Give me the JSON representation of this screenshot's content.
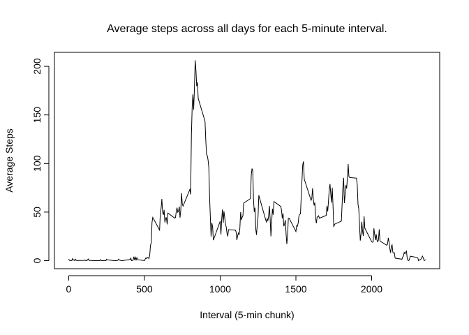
{
  "chart_data": {
    "type": "line",
    "title": "Average steps across all days for each 5-minute interval.",
    "x_label": "Interval (5-min chunk)",
    "y_label": "Average Steps",
    "color": "#000000",
    "xlim": [
      -94.2,
      2449.2
    ],
    "ylim": [
      -8.25,
      214.4
    ],
    "xticks": [
      0,
      500,
      1000,
      1500,
      2000
    ],
    "yticks": [
      0,
      50,
      100,
      150,
      200
    ],
    "x": [
      0,
      5,
      10,
      15,
      20,
      25,
      30,
      35,
      40,
      45,
      50,
      55,
      100,
      105,
      110,
      115,
      120,
      125,
      130,
      135,
      140,
      145,
      150,
      155,
      200,
      205,
      210,
      215,
      220,
      225,
      230,
      235,
      240,
      245,
      250,
      255,
      300,
      305,
      310,
      315,
      320,
      325,
      330,
      335,
      340,
      345,
      350,
      355,
      400,
      405,
      410,
      415,
      420,
      425,
      430,
      435,
      440,
      445,
      450,
      455,
      500,
      505,
      510,
      515,
      520,
      525,
      530,
      535,
      540,
      545,
      550,
      555,
      600,
      605,
      610,
      615,
      620,
      625,
      630,
      635,
      640,
      645,
      650,
      655,
      700,
      705,
      710,
      715,
      720,
      725,
      730,
      735,
      740,
      745,
      750,
      755,
      800,
      805,
      810,
      815,
      820,
      825,
      830,
      835,
      840,
      845,
      850,
      855,
      900,
      905,
      910,
      915,
      920,
      925,
      930,
      935,
      940,
      945,
      950,
      955,
      1000,
      1005,
      1010,
      1015,
      1020,
      1025,
      1030,
      1035,
      1040,
      1045,
      1050,
      1055,
      1100,
      1105,
      1110,
      1115,
      1120,
      1125,
      1130,
      1135,
      1140,
      1145,
      1150,
      1155,
      1200,
      1205,
      1210,
      1215,
      1220,
      1225,
      1230,
      1235,
      1240,
      1245,
      1250,
      1255,
      1300,
      1305,
      1310,
      1315,
      1320,
      1325,
      1330,
      1335,
      1340,
      1345,
      1350,
      1355,
      1400,
      1405,
      1410,
      1415,
      1420,
      1425,
      1430,
      1435,
      1440,
      1445,
      1450,
      1455,
      1500,
      1505,
      1510,
      1515,
      1520,
      1525,
      1530,
      1535,
      1540,
      1545,
      1550,
      1555,
      1600,
      1605,
      1610,
      1615,
      1620,
      1625,
      1630,
      1635,
      1640,
      1645,
      1650,
      1655,
      1700,
      1705,
      1710,
      1715,
      1720,
      1725,
      1730,
      1735,
      1740,
      1745,
      1750,
      1755,
      1800,
      1805,
      1810,
      1815,
      1820,
      1825,
      1830,
      1835,
      1840,
      1845,
      1850,
      1855,
      1900,
      1905,
      1910,
      1915,
      1920,
      1925,
      1930,
      1935,
      1940,
      1945,
      1950,
      1955,
      2000,
      2005,
      2010,
      2015,
      2020,
      2025,
      2030,
      2035,
      2040,
      2045,
      2050,
      2055,
      2100,
      2105,
      2110,
      2115,
      2120,
      2125,
      2130,
      2135,
      2140,
      2145,
      2150,
      2155,
      2200,
      2205,
      2210,
      2215,
      2220,
      2225,
      2230,
      2235,
      2240,
      2245,
      2250,
      2255,
      2300,
      2305,
      2310,
      2315,
      2320,
      2325,
      2330,
      2335,
      2340,
      2345,
      2350,
      2355
    ],
    "values": [
      1.7,
      0.3,
      0.1,
      0.2,
      0.1,
      2.1,
      0.5,
      0.9,
      0,
      1.5,
      0.3,
      0.1,
      0.3,
      0.7,
      0.2,
      0.3,
      0,
      1.1,
      1.8,
      0.2,
      0.2,
      0.4,
      0.3,
      0,
      0,
      0,
      1.1,
      0,
      0,
      0.1,
      0,
      0.2,
      0,
      0,
      1.5,
      0.9,
      0,
      0,
      0,
      0,
      0.2,
      0.6,
      1.6,
      0.6,
      0.5,
      0.1,
      0,
      0,
      1.2,
      0.9,
      2.6,
      0,
      0.3,
      0.4,
      4.1,
      0.7,
      3.5,
      0.8,
      3.1,
      1.1,
      0,
      1.6,
      3.0,
      2.2,
      3.3,
      3.0,
      2.1,
      6.1,
      16.0,
      18.3,
      39.5,
      44.5,
      31.5,
      49.3,
      53.8,
      63.5,
      50,
      47.1,
      52.2,
      39.3,
      44.0,
      44.2,
      37.4,
      49.0,
      43.8,
      44.4,
      50.5,
      54.5,
      49.9,
      51.0,
      55.7,
      44.3,
      52.3,
      69.5,
      57.8,
      56.2,
      73.4,
      68.2,
      129.4,
      157.5,
      171.2,
      155.4,
      177.3,
      206.2,
      195.9,
      179.6,
      183.4,
      167.0,
      143.5,
      124.0,
      109.1,
      108.1,
      103.7,
      96.0,
      66.2,
      45.2,
      24.8,
      38.8,
      35.0,
      21.1,
      40.6,
      27.0,
      42.4,
      52.7,
      38.9,
      50.8,
      44.3,
      37.4,
      34.7,
      28.3,
      25.1,
      31.9,
      31.4,
      29.7,
      21.3,
      25.5,
      28.4,
      26.5,
      33.4,
      50.0,
      42.0,
      44.6,
      46.0,
      59.2,
      63.9,
      87.7,
      94.8,
      92.8,
      63.4,
      50.2,
      54.5,
      32.4,
      26.5,
      37.7,
      45.1,
      67.3,
      42.3,
      39.9,
      43.3,
      41.0,
      46.2,
      56.4,
      42.8,
      25.1,
      40.0,
      53.5,
      47.3,
      60.8,
      55.8,
      52.0,
      43.6,
      48.7,
      35.5,
      37.5,
      41.8,
      27.5,
      17.1,
      26.1,
      43.6,
      43.8,
      30.0,
      36.1,
      35.5,
      38.8,
      46.0,
      47.8,
      48.1,
      65.3,
      82.9,
      98.7,
      102.1,
      84.0,
      62.1,
      64.1,
      74.5,
      63.2,
      56.9,
      59.8,
      43.9,
      38.6,
      44.7,
      45.5,
      46.2,
      43.7,
      46.6,
      56.3,
      50.7,
      61.2,
      72.7,
      78.9,
      68.9,
      59.7,
      75.1,
      56.5,
      34.8,
      37.5,
      40.7,
      58.0,
      74.7,
      85.3,
      59.3,
      67.8,
      77.7,
      74.2,
      85.3,
      99.5,
      86.6,
      85.6,
      84.9,
      77.8,
      58.0,
      53.4,
      36.3,
      20.7,
      27.4,
      40.0,
      30.2,
      25.5,
      45.7,
      33.5,
      19.6,
      19.0,
      19.3,
      33.3,
      26.8,
      21.2,
      27.3,
      21.3,
      19.5,
      21.3,
      32.3,
      20.2,
      15.9,
      17.2,
      23.5,
      19.2,
      12.5,
      8.0,
      14.7,
      16.3,
      8.7,
      7.8,
      8.1,
      2.6,
      1.5,
      3.7,
      4.8,
      8.5,
      7.1,
      8.7,
      9.8,
      2.2,
      0.3,
      0.1,
      1.6,
      4.6,
      3.3,
      2.8,
      0,
      0.8,
      1.0,
      1.6,
      2.6,
      4.7,
      3.3,
      0.6,
      0.2,
      1.1
    ]
  }
}
